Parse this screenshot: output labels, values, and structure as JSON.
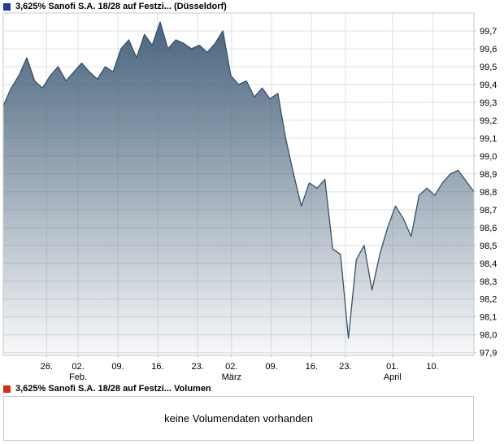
{
  "legend": {
    "price_marker_color": "#1c3f94",
    "price_label": "3,625% Sanofi S.A. 18/28 auf Festzi... (Düsseldorf)",
    "volume_marker_color": "#cc3311",
    "volume_label": "3,625% Sanofi S.A. 18/28 auf Festzi... Volumen"
  },
  "volume_panel": {
    "message": "keine Volumendaten vorhanden"
  },
  "chart_data": {
    "type": "area",
    "title": "3,625% Sanofi S.A. 18/28 auf Festzi... (Düsseldorf)",
    "ylabel": "",
    "xlabel": "",
    "ylim": [
      97.885,
      99.8
    ],
    "grid": true,
    "legend_position": "top-left",
    "y_ticks": [
      97.9,
      98.0,
      98.1,
      98.2,
      98.3,
      98.4,
      98.5,
      98.6,
      98.7,
      98.8,
      98.9,
      99.0,
      99.1,
      99.2,
      99.3,
      99.4,
      99.5,
      99.6,
      99.7
    ],
    "x_ticks": [
      {
        "f": 0.092,
        "label": "26.",
        "month": ""
      },
      {
        "f": 0.159,
        "label": "02.",
        "month": "Feb."
      },
      {
        "f": 0.2435,
        "label": "09.",
        "month": ""
      },
      {
        "f": 0.328,
        "label": "16.",
        "month": ""
      },
      {
        "f": 0.413,
        "label": "23.",
        "month": ""
      },
      {
        "f": 0.485,
        "label": "02.",
        "month": "März"
      },
      {
        "f": 0.57,
        "label": "09.",
        "month": ""
      },
      {
        "f": 0.655,
        "label": "16.",
        "month": ""
      },
      {
        "f": 0.727,
        "label": "23.",
        "month": ""
      },
      {
        "f": 0.827,
        "label": "01.",
        "month": "April"
      },
      {
        "f": 0.912,
        "label": "10.",
        "month": ""
      }
    ],
    "values": [
      99.28,
      99.38,
      99.45,
      99.55,
      99.42,
      99.38,
      99.45,
      99.5,
      99.42,
      99.47,
      99.52,
      99.47,
      99.43,
      99.5,
      99.47,
      99.6,
      99.65,
      99.55,
      99.68,
      99.62,
      99.75,
      99.6,
      99.65,
      99.63,
      99.6,
      99.62,
      99.58,
      99.63,
      99.7,
      99.45,
      99.4,
      99.42,
      99.33,
      99.38,
      99.32,
      99.35,
      99.1,
      98.9,
      98.72,
      98.85,
      98.82,
      98.87,
      98.48,
      98.45,
      97.98,
      98.42,
      98.5,
      98.25,
      98.45,
      98.6,
      98.72,
      98.65,
      98.55,
      98.78,
      98.82,
      98.78,
      98.85,
      98.9,
      98.92,
      98.86,
      98.8
    ],
    "colors": {
      "line": "#365069",
      "fill_top": "#44607a",
      "grid": "#e0e0e0",
      "border": "#c8c8c8",
      "tick_text": "#000000"
    }
  }
}
